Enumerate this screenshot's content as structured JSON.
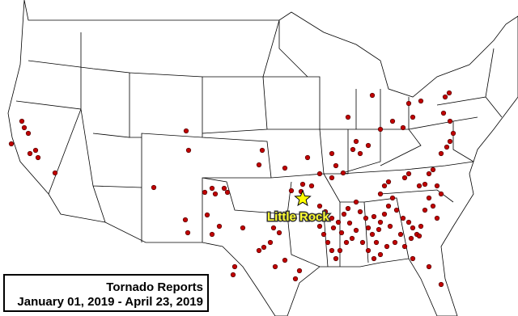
{
  "map": {
    "label": "Little Rock"
  },
  "legend": {
    "title": "Tornado Reports",
    "dates": "January 01, 2019 - April 23, 2019"
  }
}
